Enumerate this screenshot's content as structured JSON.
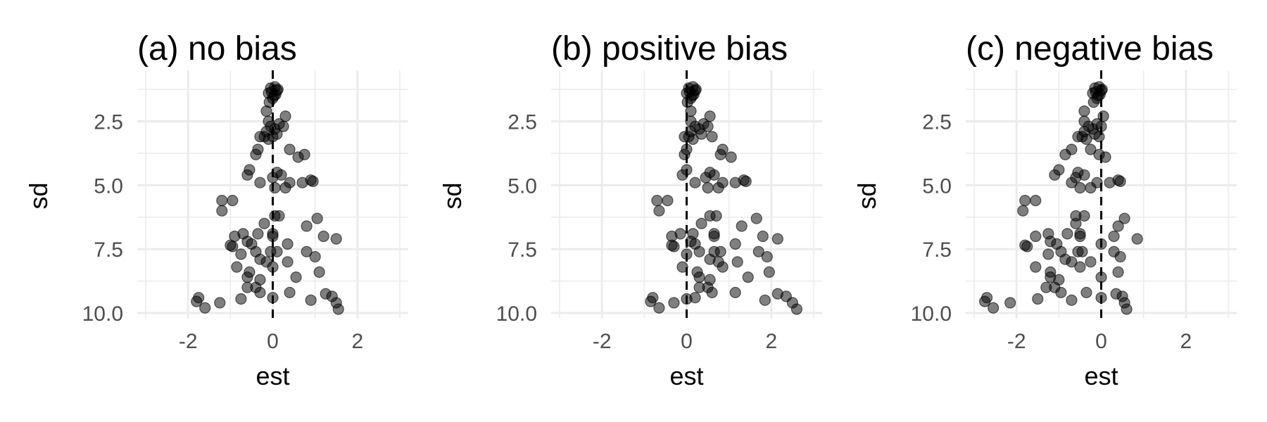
{
  "chart_data": [
    {
      "type": "scatter",
      "title": "(a) no bias",
      "xlabel": "est",
      "ylabel": "sd",
      "xlim": [
        -3.2,
        3.2
      ],
      "ylim": [
        1.0,
        10.0
      ],
      "y_reversed": true,
      "x_ticks": [
        "-2",
        "0",
        "2"
      ],
      "x_tick_values": [
        -2,
        0,
        2
      ],
      "y_ticks": [
        "2.5",
        "5.0",
        "7.5",
        "10.0"
      ],
      "y_tick_values": [
        2.5,
        5.0,
        7.5,
        10.0
      ],
      "reference_x": 0,
      "grid": true,
      "points": [
        [
          -0.05,
          1.2
        ],
        [
          0.05,
          1.15
        ],
        [
          0.1,
          1.3
        ],
        [
          -0.1,
          1.4
        ],
        [
          0.0,
          1.6
        ],
        [
          -0.08,
          1.75
        ],
        [
          0.03,
          1.5
        ],
        [
          0.12,
          1.25
        ],
        [
          -0.03,
          1.35
        ],
        [
          0.07,
          1.45
        ],
        [
          -0.15,
          2.1
        ],
        [
          0.3,
          2.3
        ],
        [
          -0.1,
          2.5
        ],
        [
          0.15,
          2.6
        ],
        [
          -0.05,
          2.7
        ],
        [
          0.05,
          2.8
        ],
        [
          -0.15,
          2.9
        ],
        [
          0.25,
          2.7
        ],
        [
          0.1,
          3.0
        ],
        [
          -0.2,
          3.1
        ],
        [
          -0.3,
          3.1
        ],
        [
          -0.1,
          3.2
        ],
        [
          0.0,
          3.1
        ],
        [
          -0.35,
          3.6
        ],
        [
          -0.4,
          3.8
        ],
        [
          0.4,
          3.6
        ],
        [
          0.6,
          3.9
        ],
        [
          0.75,
          3.8
        ],
        [
          -0.55,
          4.4
        ],
        [
          -0.6,
          4.6
        ],
        [
          0.1,
          4.5
        ],
        [
          0.0,
          4.7
        ],
        [
          0.2,
          4.6
        ],
        [
          0.9,
          4.8
        ],
        [
          0.95,
          4.85
        ],
        [
          -0.3,
          4.9
        ],
        [
          0.4,
          4.9
        ],
        [
          0.7,
          4.9
        ],
        [
          0.3,
          5.1
        ],
        [
          0.05,
          5.1
        ],
        [
          -1.2,
          5.6
        ],
        [
          -0.95,
          5.6
        ],
        [
          -1.2,
          6.0
        ],
        [
          0.05,
          6.2
        ],
        [
          0.15,
          6.2
        ],
        [
          -0.2,
          6.5
        ],
        [
          0.8,
          6.6
        ],
        [
          1.05,
          6.3
        ],
        [
          -0.7,
          6.9
        ],
        [
          -0.35,
          6.9
        ],
        [
          0.0,
          6.9
        ],
        [
          0.0,
          7.0
        ],
        [
          -0.9,
          7.0
        ],
        [
          1.2,
          7.0
        ],
        [
          1.5,
          7.1
        ],
        [
          -0.6,
          7.2
        ],
        [
          -0.5,
          7.3
        ],
        [
          -1.0,
          7.35
        ],
        [
          -0.95,
          7.4
        ],
        [
          0.35,
          7.3
        ],
        [
          -0.4,
          7.6
        ],
        [
          0.1,
          7.6
        ],
        [
          -0.75,
          7.7
        ],
        [
          -0.05,
          7.6
        ],
        [
          0.8,
          7.6
        ],
        [
          1.0,
          7.8
        ],
        [
          -0.3,
          7.9
        ],
        [
          -0.15,
          8.0
        ],
        [
          0.35,
          8.0
        ],
        [
          0.0,
          8.2
        ],
        [
          -0.85,
          8.2
        ],
        [
          -0.55,
          8.4
        ],
        [
          0.55,
          8.6
        ],
        [
          1.1,
          8.4
        ],
        [
          -0.6,
          8.6
        ],
        [
          -0.3,
          8.7
        ],
        [
          -0.4,
          9.0
        ],
        [
          -0.6,
          9.0
        ],
        [
          -0.3,
          9.2
        ],
        [
          0.0,
          9.4
        ],
        [
          0.4,
          9.2
        ],
        [
          0.9,
          9.5
        ],
        [
          -0.75,
          9.45
        ],
        [
          1.25,
          9.25
        ],
        [
          1.4,
          9.35
        ],
        [
          1.5,
          9.6
        ],
        [
          1.55,
          9.85
        ],
        [
          -1.25,
          9.6
        ],
        [
          -1.6,
          9.8
        ],
        [
          -1.75,
          9.4
        ],
        [
          -1.8,
          9.55
        ]
      ]
    },
    {
      "type": "scatter",
      "title": "(b) positive bias",
      "xlabel": "est",
      "ylabel": "sd",
      "xlim": [
        -3.2,
        3.2
      ],
      "ylim": [
        1.0,
        10.0
      ],
      "y_reversed": true,
      "x_ticks": [
        "-2",
        "0",
        "2"
      ],
      "x_tick_values": [
        -2,
        0,
        2
      ],
      "y_ticks": [
        "2.5",
        "5.0",
        "7.5",
        "10.0"
      ],
      "y_tick_values": [
        2.5,
        5.0,
        7.5,
        10.0
      ],
      "reference_x": 0,
      "grid": true,
      "points": [
        [
          0.05,
          1.2
        ],
        [
          0.15,
          1.15
        ],
        [
          0.2,
          1.3
        ],
        [
          0.0,
          1.4
        ],
        [
          0.1,
          1.6
        ],
        [
          0.02,
          1.75
        ],
        [
          0.13,
          1.5
        ],
        [
          0.22,
          1.25
        ],
        [
          0.07,
          1.35
        ],
        [
          0.17,
          1.45
        ],
        [
          0.1,
          2.1
        ],
        [
          0.55,
          2.3
        ],
        [
          0.1,
          2.5
        ],
        [
          0.4,
          2.6
        ],
        [
          0.2,
          2.7
        ],
        [
          0.3,
          2.8
        ],
        [
          0.1,
          2.9
        ],
        [
          0.5,
          2.7
        ],
        [
          0.35,
          3.0
        ],
        [
          0.05,
          3.1
        ],
        [
          -0.05,
          3.1
        ],
        [
          0.15,
          3.2
        ],
        [
          0.6,
          3.1
        ],
        [
          0.0,
          3.6
        ],
        [
          -0.05,
          3.8
        ],
        [
          0.85,
          3.6
        ],
        [
          1.05,
          3.9
        ],
        [
          0.8,
          3.8
        ],
        [
          0.0,
          4.4
        ],
        [
          -0.1,
          4.6
        ],
        [
          0.55,
          4.5
        ],
        [
          0.45,
          4.7
        ],
        [
          0.65,
          4.6
        ],
        [
          1.35,
          4.8
        ],
        [
          1.4,
          4.85
        ],
        [
          0.2,
          4.9
        ],
        [
          0.85,
          4.9
        ],
        [
          1.15,
          4.9
        ],
        [
          0.75,
          5.1
        ],
        [
          0.5,
          5.1
        ],
        [
          -0.7,
          5.6
        ],
        [
          -0.45,
          5.6
        ],
        [
          -0.65,
          6.0
        ],
        [
          0.55,
          6.2
        ],
        [
          0.7,
          6.2
        ],
        [
          0.35,
          6.5
        ],
        [
          1.3,
          6.6
        ],
        [
          1.65,
          6.3
        ],
        [
          -0.15,
          6.9
        ],
        [
          0.15,
          6.9
        ],
        [
          0.65,
          6.9
        ],
        [
          0.65,
          7.0
        ],
        [
          -0.35,
          7.0
        ],
        [
          1.8,
          7.0
        ],
        [
          2.15,
          7.1
        ],
        [
          0.1,
          7.2
        ],
        [
          0.2,
          7.3
        ],
        [
          -0.35,
          7.35
        ],
        [
          -0.3,
          7.4
        ],
        [
          1.15,
          7.3
        ],
        [
          0.3,
          7.6
        ],
        [
          0.8,
          7.6
        ],
        [
          0.0,
          7.7
        ],
        [
          0.65,
          7.6
        ],
        [
          1.7,
          7.6
        ],
        [
          1.9,
          7.8
        ],
        [
          0.55,
          7.9
        ],
        [
          0.75,
          8.0
        ],
        [
          1.2,
          8.0
        ],
        [
          0.85,
          8.2
        ],
        [
          -0.1,
          8.2
        ],
        [
          0.25,
          8.4
        ],
        [
          1.45,
          8.6
        ],
        [
          1.95,
          8.4
        ],
        [
          0.3,
          8.6
        ],
        [
          0.55,
          8.7
        ],
        [
          0.5,
          9.0
        ],
        [
          0.3,
          9.0
        ],
        [
          0.6,
          9.2
        ],
        [
          0.2,
          9.4
        ],
        [
          1.15,
          9.2
        ],
        [
          1.85,
          9.5
        ],
        [
          0.0,
          9.45
        ],
        [
          2.15,
          9.25
        ],
        [
          2.35,
          9.35
        ],
        [
          2.5,
          9.6
        ],
        [
          2.6,
          9.85
        ],
        [
          -0.3,
          9.6
        ],
        [
          -0.65,
          9.8
        ],
        [
          -0.8,
          9.4
        ],
        [
          -0.85,
          9.55
        ]
      ]
    },
    {
      "type": "scatter",
      "title": "(c) negative bias",
      "xlabel": "est",
      "ylabel": "sd",
      "xlim": [
        -3.2,
        3.2
      ],
      "ylim": [
        1.0,
        10.0
      ],
      "y_reversed": true,
      "x_ticks": [
        "-2",
        "0",
        "2"
      ],
      "x_tick_values": [
        -2,
        0,
        2
      ],
      "y_ticks": [
        "2.5",
        "5.0",
        "7.5",
        "10.0"
      ],
      "y_tick_values": [
        2.5,
        5.0,
        7.5,
        10.0
      ],
      "reference_x": 0,
      "grid": true,
      "points": [
        [
          -0.15,
          1.2
        ],
        [
          -0.05,
          1.15
        ],
        [
          0.0,
          1.3
        ],
        [
          -0.2,
          1.4
        ],
        [
          -0.1,
          1.6
        ],
        [
          -0.18,
          1.75
        ],
        [
          -0.07,
          1.5
        ],
        [
          0.02,
          1.25
        ],
        [
          -0.13,
          1.35
        ],
        [
          -0.03,
          1.45
        ],
        [
          -0.4,
          2.1
        ],
        [
          0.05,
          2.3
        ],
        [
          -0.4,
          2.5
        ],
        [
          -0.1,
          2.6
        ],
        [
          -0.3,
          2.7
        ],
        [
          -0.2,
          2.8
        ],
        [
          -0.4,
          2.9
        ],
        [
          0.0,
          2.7
        ],
        [
          -0.15,
          3.0
        ],
        [
          -0.45,
          3.1
        ],
        [
          -0.55,
          3.1
        ],
        [
          -0.35,
          3.2
        ],
        [
          -0.05,
          3.1
        ],
        [
          -0.7,
          3.6
        ],
        [
          -0.85,
          3.8
        ],
        [
          -0.25,
          3.6
        ],
        [
          0.1,
          3.9
        ],
        [
          -0.05,
          3.8
        ],
        [
          -1.0,
          4.4
        ],
        [
          -1.1,
          4.6
        ],
        [
          -0.55,
          4.5
        ],
        [
          -0.6,
          4.7
        ],
        [
          -0.4,
          4.6
        ],
        [
          0.4,
          4.8
        ],
        [
          0.45,
          4.85
        ],
        [
          -0.7,
          4.9
        ],
        [
          -0.1,
          4.9
        ],
        [
          0.2,
          4.9
        ],
        [
          -0.25,
          5.1
        ],
        [
          -0.5,
          5.1
        ],
        [
          -1.8,
          5.6
        ],
        [
          -1.55,
          5.6
        ],
        [
          -1.85,
          6.0
        ],
        [
          -0.6,
          6.2
        ],
        [
          -0.4,
          6.2
        ],
        [
          -0.6,
          6.5
        ],
        [
          0.4,
          6.6
        ],
        [
          0.55,
          6.3
        ],
        [
          -1.25,
          6.9
        ],
        [
          -0.8,
          6.9
        ],
        [
          -0.5,
          6.9
        ],
        [
          -0.5,
          7.0
        ],
        [
          -1.55,
          7.0
        ],
        [
          0.3,
          7.0
        ],
        [
          0.85,
          7.1
        ],
        [
          -1.2,
          7.2
        ],
        [
          -1.05,
          7.3
        ],
        [
          -1.8,
          7.35
        ],
        [
          -1.75,
          7.4
        ],
        [
          0.0,
          7.3
        ],
        [
          -0.95,
          7.6
        ],
        [
          -0.45,
          7.6
        ],
        [
          -1.25,
          7.7
        ],
        [
          -0.55,
          7.6
        ],
        [
          0.3,
          7.6
        ],
        [
          0.45,
          7.8
        ],
        [
          -0.85,
          7.9
        ],
        [
          -0.7,
          8.0
        ],
        [
          -0.25,
          8.0
        ],
        [
          -0.5,
          8.2
        ],
        [
          -1.55,
          8.2
        ],
        [
          -1.2,
          8.4
        ],
        [
          0.0,
          8.6
        ],
        [
          0.4,
          8.4
        ],
        [
          -1.2,
          8.6
        ],
        [
          -1.0,
          8.7
        ],
        [
          -1.1,
          9.0
        ],
        [
          -1.3,
          9.0
        ],
        [
          -0.95,
          9.2
        ],
        [
          0.0,
          9.4
        ],
        [
          -0.35,
          9.2
        ],
        [
          -0.7,
          9.5
        ],
        [
          -1.5,
          9.45
        ],
        [
          0.35,
          9.25
        ],
        [
          0.5,
          9.35
        ],
        [
          0.55,
          9.6
        ],
        [
          0.6,
          9.85
        ],
        [
          -2.15,
          9.6
        ],
        [
          -2.55,
          9.8
        ],
        [
          -2.7,
          9.4
        ],
        [
          -2.75,
          9.55
        ]
      ]
    }
  ]
}
